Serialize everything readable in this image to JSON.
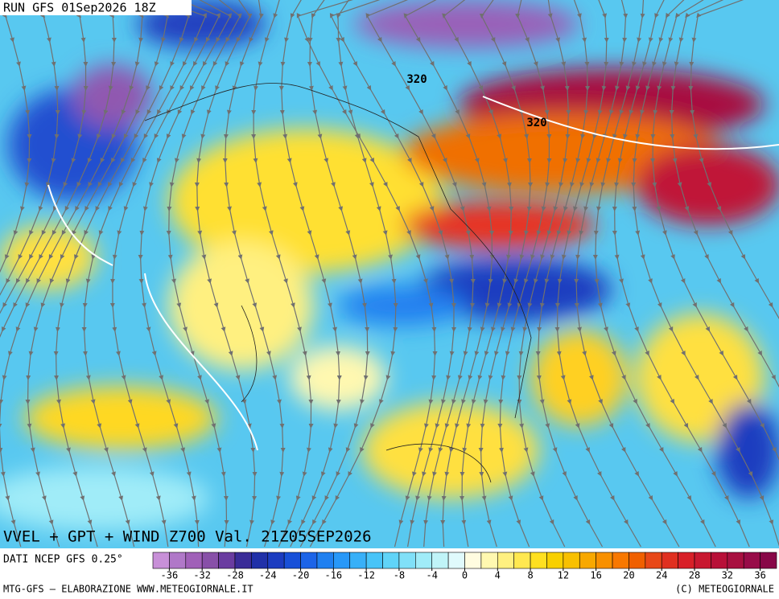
{
  "header": {
    "run": "RUN GFS 01Sep2026 18Z"
  },
  "map": {
    "title": "VVEL + GPT + WIND Z700 Val. 21Z05SEP2026",
    "contour_labels": [
      "320",
      "320"
    ]
  },
  "colorbar": {
    "range": [
      -38,
      38
    ],
    "ticks": [
      -36,
      -32,
      -28,
      -24,
      -20,
      -16,
      -12,
      -8,
      -4,
      0,
      4,
      8,
      12,
      16,
      20,
      24,
      28,
      32,
      36
    ],
    "colors": [
      "#c890d8",
      "#b078c8",
      "#a060b8",
      "#8850a8",
      "#6a3ca0",
      "#3a2c98",
      "#2030a8",
      "#1c3cc0",
      "#1850d8",
      "#1c64e8",
      "#2080f0",
      "#2898f8",
      "#38b0f8",
      "#48c4f8",
      "#60d4f8",
      "#80e0f8",
      "#a0ecf8",
      "#c0f4f8",
      "#e0fafc",
      "#fffce0",
      "#fff8b0",
      "#fff080",
      "#ffe850",
      "#ffe020",
      "#f8d000",
      "#f8c000",
      "#f8a800",
      "#f89000",
      "#f87800",
      "#f06000",
      "#e84818",
      "#e03020",
      "#d82028",
      "#c81830",
      "#b81038",
      "#a81040",
      "#980c48",
      "#880848"
    ]
  },
  "footer": {
    "source": "DATI NCEP GFS 0.25°",
    "credit": "MTG-GFS — ELABORAZIONE WWW.METEOGIORNALE.IT",
    "copyright": "(C) METEOGIORNALE"
  }
}
